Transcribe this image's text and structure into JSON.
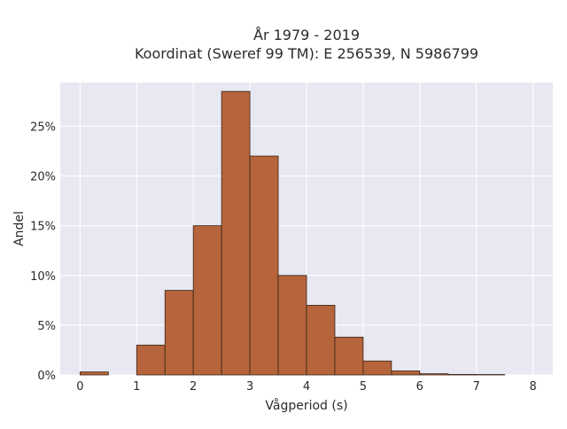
{
  "chart_data": {
    "type": "bar",
    "title_line1": "År 1979 - 2019",
    "title_line2": "Koordinat (Sweref 99 TM): E 256539, N 5986799",
    "xlabel": "Vågperiod (s)",
    "ylabel": "Andel",
    "xlim": [
      -0.35,
      8.35
    ],
    "ylim": [
      0,
      29.4
    ],
    "x_ticks": [
      "0",
      "1",
      "2",
      "3",
      "4",
      "5",
      "6",
      "7",
      "8"
    ],
    "y_ticks": [
      "0%",
      "5%",
      "10%",
      "15%",
      "20%",
      "25%"
    ],
    "bin_width": 0.5,
    "bins": [
      {
        "x0": 0.0,
        "x1": 0.5,
        "value": 0.3
      },
      {
        "x0": 0.5,
        "x1": 1.0,
        "value": 0.0
      },
      {
        "x0": 1.0,
        "x1": 1.5,
        "value": 3.0
      },
      {
        "x0": 1.5,
        "x1": 2.0,
        "value": 8.5
      },
      {
        "x0": 2.0,
        "x1": 2.5,
        "value": 15.0
      },
      {
        "x0": 2.5,
        "x1": 3.0,
        "value": 28.5
      },
      {
        "x0": 3.0,
        "x1": 3.5,
        "value": 22.0
      },
      {
        "x0": 3.5,
        "x1": 4.0,
        "value": 10.0
      },
      {
        "x0": 4.0,
        "x1": 4.5,
        "value": 7.0
      },
      {
        "x0": 4.5,
        "x1": 5.0,
        "value": 3.8
      },
      {
        "x0": 5.0,
        "x1": 5.5,
        "value": 1.4
      },
      {
        "x0": 5.5,
        "x1": 6.0,
        "value": 0.4
      },
      {
        "x0": 6.0,
        "x1": 6.5,
        "value": 0.12
      },
      {
        "x0": 6.5,
        "x1": 7.0,
        "value": 0.05
      },
      {
        "x0": 7.0,
        "x1": 7.5,
        "value": 0.04
      }
    ],
    "grid": true,
    "colors": {
      "bar": "#b5643b",
      "bar_edge": "#3b2418",
      "plot_bg": "#e8e8f2",
      "grid": "#ffffff",
      "text": "#2b2b2b"
    }
  }
}
